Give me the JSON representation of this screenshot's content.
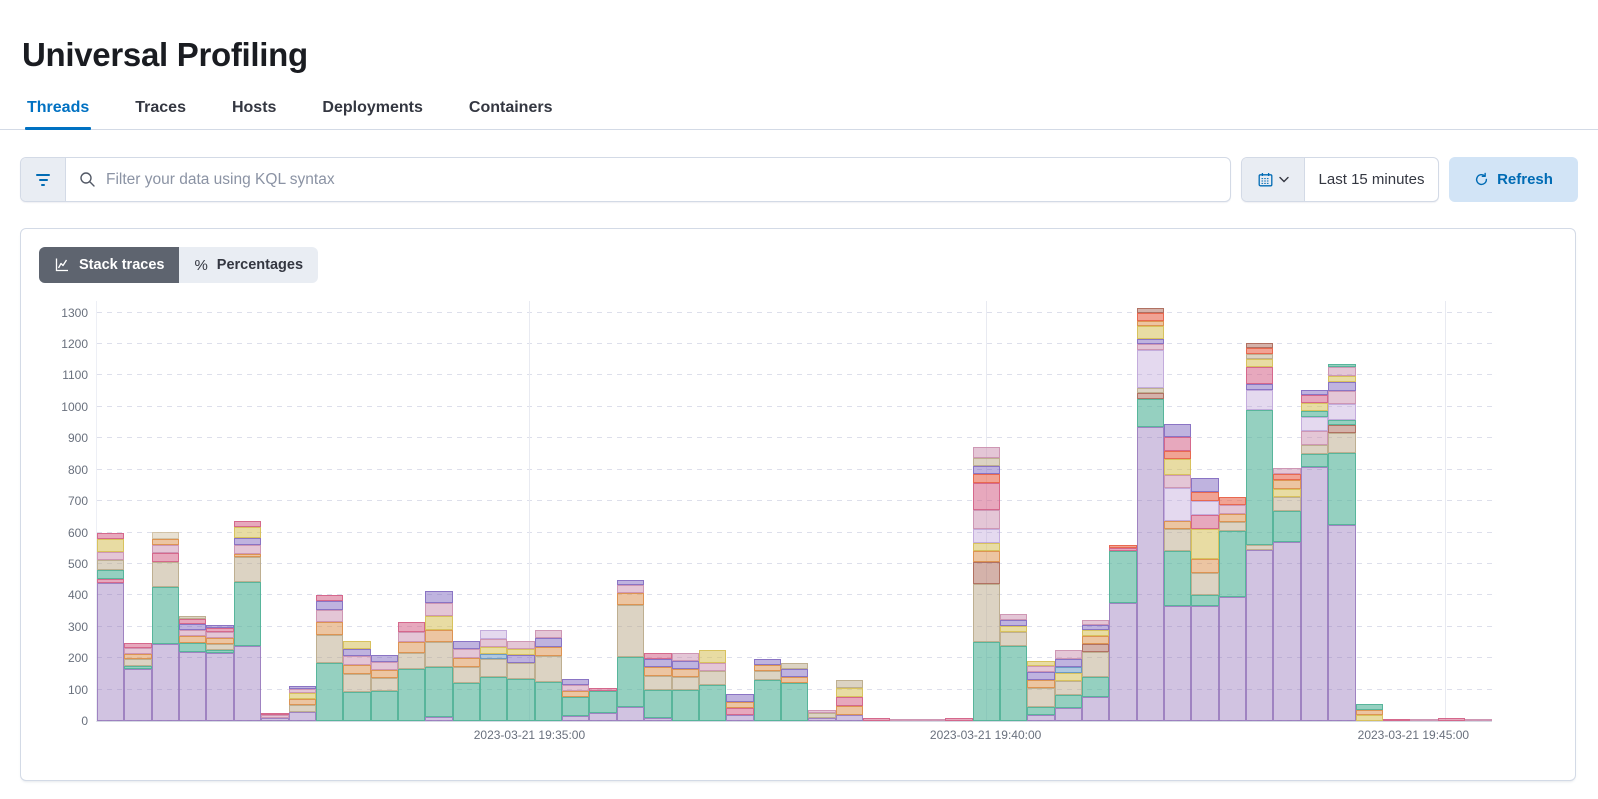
{
  "page": {
    "title": "Universal Profiling"
  },
  "colors": {
    "accent_blue": "#0071c2",
    "link_blue": "#006BB4",
    "panel_border": "#d3dae6",
    "toggle_active_bg": "#5e646f",
    "refresh_bg": "#d2e4f6",
    "text_dark": "#343741",
    "axis_text": "#69707d"
  },
  "tabs": [
    {
      "label": "Threads",
      "active": true
    },
    {
      "label": "Traces",
      "active": false
    },
    {
      "label": "Hosts",
      "active": false
    },
    {
      "label": "Deployments",
      "active": false
    },
    {
      "label": "Containers",
      "active": false
    }
  ],
  "search": {
    "placeholder": "Filter your data using KQL syntax"
  },
  "datepicker": {
    "value": "Last 15 minutes"
  },
  "refresh": {
    "label": "Refresh"
  },
  "view_toggle": {
    "stack_traces_label": "Stack traces",
    "percentages_label": "Percentages",
    "percent_glyph": "%",
    "active": "Stack traces"
  },
  "chart_data": {
    "type": "bar",
    "stacked": true,
    "title": "",
    "xlabel": "",
    "ylabel": "",
    "ylim": [
      0,
      1337
    ],
    "grid": true,
    "legend": false,
    "y_ticks": [
      0,
      100,
      200,
      300,
      400,
      500,
      600,
      700,
      800,
      900,
      1000,
      1100,
      1200,
      1300
    ],
    "x_ticks": [
      {
        "label": "2023-03-21 19:35:00",
        "pos": 0.31,
        "shift": false
      },
      {
        "label": "2023-03-21 19:40:00",
        "pos": 0.637,
        "shift": false
      },
      {
        "label": "2023-03-21 19:45:00",
        "pos": 0.966,
        "shift": true
      }
    ],
    "palette": {
      "purple": {
        "hex": "#9170B8",
        "alpha": 0.42
      },
      "lilac": {
        "hex": "#B79BD4",
        "alpha": 0.38
      },
      "teal": {
        "hex": "#54B399",
        "alpha": 0.62
      },
      "beige": {
        "hex": "#B9A888",
        "alpha": 0.5
      },
      "cream": {
        "hex": "#CDBD9D",
        "alpha": 0.45
      },
      "pink": {
        "hex": "#CA8EAE",
        "alpha": 0.5
      },
      "rose": {
        "hex": "#D36086",
        "alpha": 0.55
      },
      "yellow": {
        "hex": "#D6BF57",
        "alpha": 0.55
      },
      "orange": {
        "hex": "#DA8B45",
        "alpha": 0.5
      },
      "brown": {
        "hex": "#AA6556",
        "alpha": 0.5
      },
      "red": {
        "hex": "#E7664C",
        "alpha": 0.6
      },
      "blue": {
        "hex": "#6092C0",
        "alpha": 0.5
      },
      "violet": {
        "hex": "#8068C0",
        "alpha": 0.5
      }
    },
    "bars": [
      [
        [
          "purple",
          440
        ],
        [
          "rose",
          12
        ],
        [
          "teal",
          28
        ],
        [
          "beige",
          32
        ],
        [
          "pink",
          25
        ],
        [
          "yellow",
          42
        ],
        [
          "rose",
          18
        ]
      ],
      [
        [
          "purple",
          165
        ],
        [
          "teal",
          10
        ],
        [
          "beige",
          22
        ],
        [
          "orange",
          15
        ],
        [
          "pink",
          20
        ],
        [
          "rose",
          15
        ]
      ],
      [
        [
          "purple",
          245
        ],
        [
          "teal",
          180
        ],
        [
          "beige",
          78
        ],
        [
          "rose",
          30
        ],
        [
          "pink",
          25
        ],
        [
          "orange",
          18
        ],
        [
          "cream",
          22
        ]
      ],
      [
        [
          "purple",
          220
        ],
        [
          "teal",
          30
        ],
        [
          "orange",
          22
        ],
        [
          "pink",
          20
        ],
        [
          "violet",
          18
        ],
        [
          "rose",
          15
        ],
        [
          "beige",
          10
        ]
      ],
      [
        [
          "purple",
          215
        ],
        [
          "teal",
          10
        ],
        [
          "beige",
          20
        ],
        [
          "orange",
          18
        ],
        [
          "pink",
          20
        ],
        [
          "rose",
          12
        ],
        [
          "violet",
          10
        ]
      ],
      [
        [
          "purple",
          240
        ],
        [
          "teal",
          205
        ],
        [
          "beige",
          80
        ],
        [
          "orange",
          10
        ],
        [
          "pink",
          28
        ],
        [
          "violet",
          22
        ],
        [
          "yellow",
          35
        ],
        [
          "rose",
          20
        ]
      ],
      [
        [
          "purple",
          8
        ],
        [
          "pink",
          9
        ],
        [
          "rose",
          6
        ]
      ],
      [
        [
          "purple",
          28
        ],
        [
          "beige",
          22
        ],
        [
          "orange",
          18
        ],
        [
          "yellow",
          20
        ],
        [
          "pink",
          14
        ],
        [
          "violet",
          8
        ]
      ],
      [
        [
          "teal",
          185
        ],
        [
          "beige",
          88
        ],
        [
          "orange",
          42
        ],
        [
          "pink",
          38
        ],
        [
          "violet",
          28
        ],
        [
          "rose",
          20
        ]
      ],
      [
        [
          "teal",
          92
        ],
        [
          "beige",
          58
        ],
        [
          "orange",
          30
        ],
        [
          "pink",
          28
        ],
        [
          "violet",
          22
        ],
        [
          "yellow",
          25
        ]
      ],
      [
        [
          "teal",
          95
        ],
        [
          "beige",
          42
        ],
        [
          "orange",
          25
        ],
        [
          "pink",
          25
        ],
        [
          "violet",
          23
        ]
      ],
      [
        [
          "teal",
          165
        ],
        [
          "beige",
          50
        ],
        [
          "orange",
          35
        ],
        [
          "pink",
          33
        ],
        [
          "rose",
          32
        ]
      ],
      [
        [
          "purple",
          12
        ],
        [
          "teal",
          160
        ],
        [
          "beige",
          80
        ],
        [
          "orange",
          38
        ],
        [
          "yellow",
          45
        ],
        [
          "pink",
          42
        ],
        [
          "violet",
          38
        ]
      ],
      [
        [
          "teal",
          120
        ],
        [
          "beige",
          50
        ],
        [
          "orange",
          28
        ],
        [
          "pink",
          30
        ],
        [
          "violet",
          27
        ]
      ],
      [
        [
          "teal",
          140
        ],
        [
          "beige",
          58
        ],
        [
          "blue",
          16
        ],
        [
          "yellow",
          22
        ],
        [
          "pink",
          26
        ],
        [
          "lilac",
          30
        ]
      ],
      [
        [
          "teal",
          135
        ],
        [
          "beige",
          50
        ],
        [
          "violet",
          25
        ],
        [
          "yellow",
          20
        ],
        [
          "pink",
          25
        ]
      ],
      [
        [
          "teal",
          125
        ],
        [
          "beige",
          82
        ],
        [
          "orange",
          30
        ],
        [
          "violet",
          28
        ],
        [
          "pink",
          25
        ]
      ],
      [
        [
          "purple",
          15
        ],
        [
          "teal",
          60
        ],
        [
          "orange",
          20
        ],
        [
          "pink",
          20
        ],
        [
          "violet",
          20
        ]
      ],
      [
        [
          "purple",
          25
        ],
        [
          "teal",
          70
        ],
        [
          "rose",
          10
        ]
      ],
      [
        [
          "purple",
          45
        ],
        [
          "teal",
          160
        ],
        [
          "beige",
          165
        ],
        [
          "orange",
          38
        ],
        [
          "pink",
          25
        ],
        [
          "violet",
          17
        ]
      ],
      [
        [
          "purple",
          10
        ],
        [
          "teal",
          90
        ],
        [
          "beige",
          45
        ],
        [
          "orange",
          30
        ],
        [
          "violet",
          25
        ],
        [
          "rose",
          20
        ]
      ],
      [
        [
          "teal",
          100
        ],
        [
          "beige",
          40
        ],
        [
          "orange",
          25
        ],
        [
          "violet",
          25
        ],
        [
          "pink",
          25
        ]
      ],
      [
        [
          "teal",
          115
        ],
        [
          "beige",
          45
        ],
        [
          "pink",
          25
        ],
        [
          "yellow",
          40
        ]
      ],
      [
        [
          "purple",
          20
        ],
        [
          "rose",
          22
        ],
        [
          "orange",
          18
        ],
        [
          "violet",
          25
        ]
      ],
      [
        [
          "teal",
          130
        ],
        [
          "beige",
          30
        ],
        [
          "orange",
          20
        ],
        [
          "violet",
          20
        ]
      ],
      [
        [
          "teal",
          120
        ],
        [
          "orange",
          20
        ],
        [
          "violet",
          25
        ],
        [
          "beige",
          20
        ]
      ],
      [
        [
          "purple",
          10
        ],
        [
          "beige",
          15
        ],
        [
          "pink",
          10
        ]
      ],
      [
        [
          "purple",
          18
        ],
        [
          "orange",
          28
        ],
        [
          "rose",
          28
        ],
        [
          "yellow",
          30
        ],
        [
          "beige",
          24
        ]
      ],
      [
        [
          "rose",
          8
        ]
      ],
      [
        [
          "pink",
          5
        ]
      ],
      [
        [
          "pink",
          5
        ]
      ],
      [
        [
          "rose",
          10
        ]
      ],
      [
        [
          "teal",
          250
        ],
        [
          "beige",
          185
        ],
        [
          "brown",
          70
        ],
        [
          "orange",
          35
        ],
        [
          "yellow",
          25
        ],
        [
          "lilac",
          45
        ],
        [
          "pink",
          60
        ],
        [
          "rose",
          85
        ],
        [
          "red",
          30
        ],
        [
          "violet",
          25
        ],
        [
          "beige",
          25
        ],
        [
          "pink",
          35
        ]
      ],
      [
        [
          "teal",
          240
        ],
        [
          "beige",
          45
        ],
        [
          "yellow",
          20
        ],
        [
          "violet",
          20
        ],
        [
          "pink",
          20
        ]
      ],
      [
        [
          "purple",
          20
        ],
        [
          "teal",
          25
        ],
        [
          "beige",
          60
        ],
        [
          "orange",
          25
        ],
        [
          "violet",
          25
        ],
        [
          "pink",
          20
        ],
        [
          "yellow",
          15
        ]
      ],
      [
        [
          "purple",
          40
        ],
        [
          "teal",
          40
        ],
        [
          "beige",
          45
        ],
        [
          "yellow",
          25
        ],
        [
          "blue",
          20
        ],
        [
          "violet",
          25
        ],
        [
          "pink",
          30
        ]
      ],
      [
        [
          "purple",
          75
        ],
        [
          "teal",
          65
        ],
        [
          "beige",
          80
        ],
        [
          "brown",
          25
        ],
        [
          "orange",
          25
        ],
        [
          "yellow",
          20
        ],
        [
          "violet",
          15
        ],
        [
          "pink",
          15
        ]
      ],
      [
        [
          "purple",
          375
        ],
        [
          "teal",
          165
        ],
        [
          "rose",
          10
        ],
        [
          "red",
          10
        ]
      ],
      [
        [
          "purple",
          935
        ],
        [
          "teal",
          90
        ],
        [
          "brown",
          20
        ],
        [
          "beige",
          15
        ],
        [
          "lilac",
          120
        ],
        [
          "pink",
          20
        ],
        [
          "violet",
          15
        ],
        [
          "yellow",
          40
        ],
        [
          "orange",
          15
        ],
        [
          "red",
          25
        ],
        [
          "brown",
          15
        ]
      ],
      [
        [
          "purple",
          365
        ],
        [
          "teal",
          175
        ],
        [
          "beige",
          70
        ],
        [
          "orange",
          25
        ],
        [
          "lilac",
          105
        ],
        [
          "pink",
          40
        ],
        [
          "yellow",
          50
        ],
        [
          "red",
          25
        ],
        [
          "rose",
          45
        ],
        [
          "violet",
          40
        ]
      ],
      [
        [
          "purple",
          365
        ],
        [
          "teal",
          35
        ],
        [
          "beige",
          70
        ],
        [
          "orange",
          45
        ],
        [
          "yellow",
          95
        ],
        [
          "rose",
          45
        ],
        [
          "lilac",
          45
        ],
        [
          "red",
          30
        ],
        [
          "violet",
          45
        ]
      ],
      [
        [
          "purple",
          395
        ],
        [
          "teal",
          210
        ],
        [
          "beige",
          30
        ],
        [
          "orange",
          25
        ],
        [
          "pink",
          30
        ],
        [
          "red",
          25
        ]
      ],
      [
        [
          "purple",
          545
        ],
        [
          "beige",
          15
        ],
        [
          "teal",
          430
        ],
        [
          "lilac",
          65
        ],
        [
          "violet",
          20
        ],
        [
          "rose",
          55
        ],
        [
          "yellow",
          25
        ],
        [
          "beige",
          15
        ],
        [
          "red",
          20
        ],
        [
          "brown",
          15
        ]
      ],
      [
        [
          "purple",
          570
        ],
        [
          "teal",
          100
        ],
        [
          "beige",
          45
        ],
        [
          "yellow",
          25
        ],
        [
          "orange",
          30
        ],
        [
          "red",
          20
        ],
        [
          "pink",
          20
        ]
      ],
      [
        [
          "purple",
          810
        ],
        [
          "teal",
          40
        ],
        [
          "beige",
          30
        ],
        [
          "pink",
          45
        ],
        [
          "lilac",
          45
        ],
        [
          "teal",
          20
        ],
        [
          "yellow",
          25
        ],
        [
          "rose",
          25
        ],
        [
          "violet",
          15
        ]
      ],
      [
        [
          "purple",
          625
        ],
        [
          "teal",
          230
        ],
        [
          "beige",
          65
        ],
        [
          "brown",
          25
        ],
        [
          "teal",
          15
        ],
        [
          "lilac",
          50
        ],
        [
          "pink",
          40
        ],
        [
          "violet",
          30
        ],
        [
          "yellow",
          20
        ],
        [
          "pink",
          30
        ],
        [
          "teal",
          10
        ]
      ],
      [
        [
          "yellow",
          20
        ],
        [
          "orange",
          15
        ],
        [
          "teal",
          20
        ]
      ],
      [
        [
          "rose",
          5
        ]
      ],
      [
        [
          "pink",
          3
        ]
      ],
      [
        [
          "rose",
          8
        ]
      ],
      [
        [
          "pink",
          2
        ]
      ]
    ]
  }
}
